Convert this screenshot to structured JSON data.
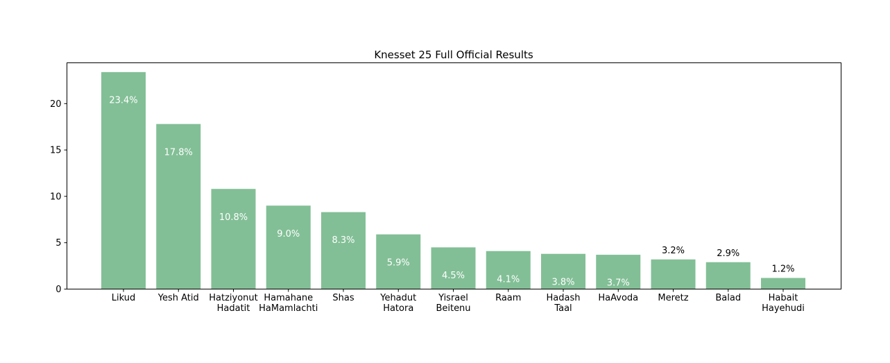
{
  "chart_data": {
    "type": "bar",
    "title": "Knesset 25 Full Official Results",
    "xlabel": "",
    "ylabel": "",
    "ylim": [
      0,
      24.4
    ],
    "yticks": [
      "0",
      "5",
      "10",
      "15",
      "20"
    ],
    "categories": [
      [
        "Likud"
      ],
      [
        "Yesh Atid"
      ],
      [
        "Hatziyonut",
        "Hadatit"
      ],
      [
        "Hamahane",
        "HaMamlachti"
      ],
      [
        "Shas"
      ],
      [
        "Yehadut",
        "Hatora"
      ],
      [
        "Yisrael",
        "Beitenu"
      ],
      [
        "Raam"
      ],
      [
        "Hadash",
        "Taal"
      ],
      [
        "HaAvoda"
      ],
      [
        "Meretz"
      ],
      [
        "Balad"
      ],
      [
        "Habait",
        "Hayehudi"
      ]
    ],
    "values": [
      23.4,
      17.8,
      10.8,
      9.0,
      8.3,
      5.9,
      4.5,
      4.1,
      3.8,
      3.7,
      3.2,
      2.9,
      1.2
    ],
    "data_labels": [
      "23.4%",
      "17.8%",
      "10.8%",
      "9.0%",
      "8.3%",
      "5.9%",
      "4.5%",
      "4.1%",
      "3.8%",
      "3.7%",
      "3.2%",
      "2.9%",
      "1.2%"
    ],
    "bar_color": "#82bf96",
    "grid": false,
    "legend": "none"
  }
}
